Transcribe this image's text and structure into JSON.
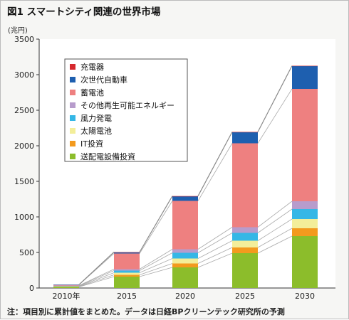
{
  "title": "図1 スマートシティ関連の世界市場",
  "note": "注：項目別に累計値をまとめた。データは日経BPクリーンテック研究所の予測",
  "chart_data": {
    "type": "bar",
    "stacked": true,
    "title": "図1 スマートシティ関連の世界市場",
    "ylabel": "(兆円)",
    "xlabel": "",
    "ylim": [
      0,
      3500
    ],
    "yticks": [
      0,
      500,
      1000,
      1500,
      2000,
      2500,
      3000,
      3500
    ],
    "categories": [
      "2010年",
      "2015",
      "2020",
      "2025",
      "2030"
    ],
    "grid": false,
    "legend_position": "upper-left",
    "series": [
      {
        "name": "送配電設備投資",
        "color": "#8cbd2b",
        "values": [
          15,
          160,
          290,
          490,
          730
        ]
      },
      {
        "name": "IT投資",
        "color": "#f39a1e",
        "values": [
          5,
          25,
          55,
          80,
          110
        ]
      },
      {
        "name": "太陽電池",
        "color": "#f3ee9a",
        "values": [
          5,
          30,
          70,
          95,
          130
        ]
      },
      {
        "name": "風力発電",
        "color": "#35b7e6",
        "values": [
          5,
          30,
          80,
          110,
          140
        ]
      },
      {
        "name": "その他再生可能エネルギー",
        "color": "#b79ccc",
        "values": [
          5,
          20,
          50,
          80,
          110
        ]
      },
      {
        "name": "蓄電池",
        "color": "#ee8080",
        "values": [
          10,
          220,
          680,
          1180,
          1580
        ]
      },
      {
        "name": "次世代自動車",
        "color": "#1e5faf",
        "values": [
          3,
          15,
          65,
          155,
          320
        ]
      },
      {
        "name": "充電器",
        "color": "#d6282e",
        "values": [
          0,
          5,
          3,
          5,
          5
        ]
      }
    ]
  }
}
